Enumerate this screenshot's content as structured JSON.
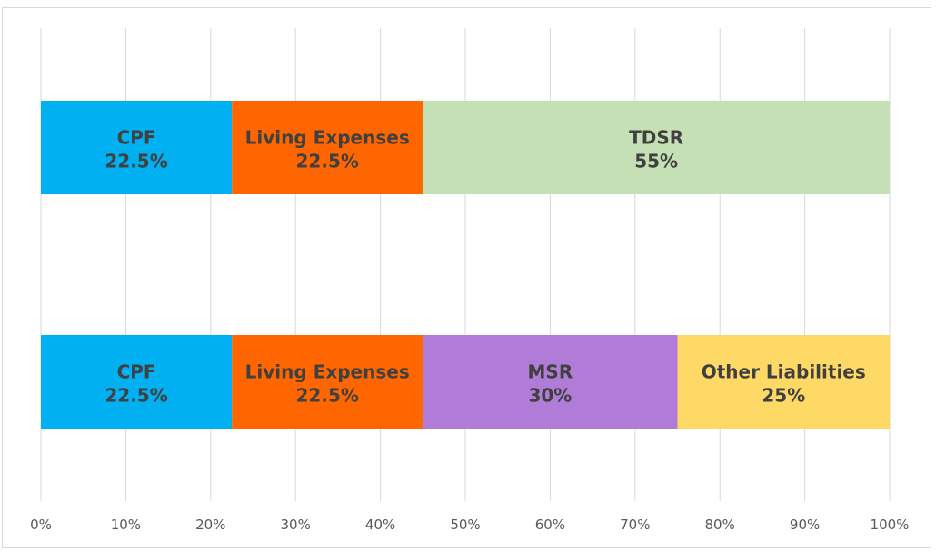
{
  "chart_data": {
    "type": "bar",
    "orientation": "horizontal",
    "stacked": true,
    "xlim": [
      0,
      100
    ],
    "x_ticks": [
      "0%",
      "10%",
      "20%",
      "30%",
      "40%",
      "50%",
      "60%",
      "70%",
      "80%",
      "90%",
      "100%"
    ],
    "grid": "vertical",
    "bars": [
      {
        "segments": [
          {
            "name": "CPF",
            "value": 22.5,
            "label": "22.5%",
            "color": "#00b0f0"
          },
          {
            "name": "Living Expenses",
            "value": 22.5,
            "label": "22.5%",
            "color": "#ff6600"
          },
          {
            "name": "TDSR",
            "value": 55,
            "label": "55%",
            "color": "#c5e0b4"
          }
        ]
      },
      {
        "segments": [
          {
            "name": "CPF",
            "value": 22.5,
            "label": "22.5%",
            "color": "#00b0f0"
          },
          {
            "name": "Living Expenses",
            "value": 22.5,
            "label": "22.5%",
            "color": "#ff6600"
          },
          {
            "name": "MSR",
            "value": 30,
            "label": "30%",
            "color": "#b07cd8"
          },
          {
            "name": "Other Liabilities",
            "value": 25,
            "label": "25%",
            "color": "#ffd966"
          }
        ]
      }
    ]
  }
}
